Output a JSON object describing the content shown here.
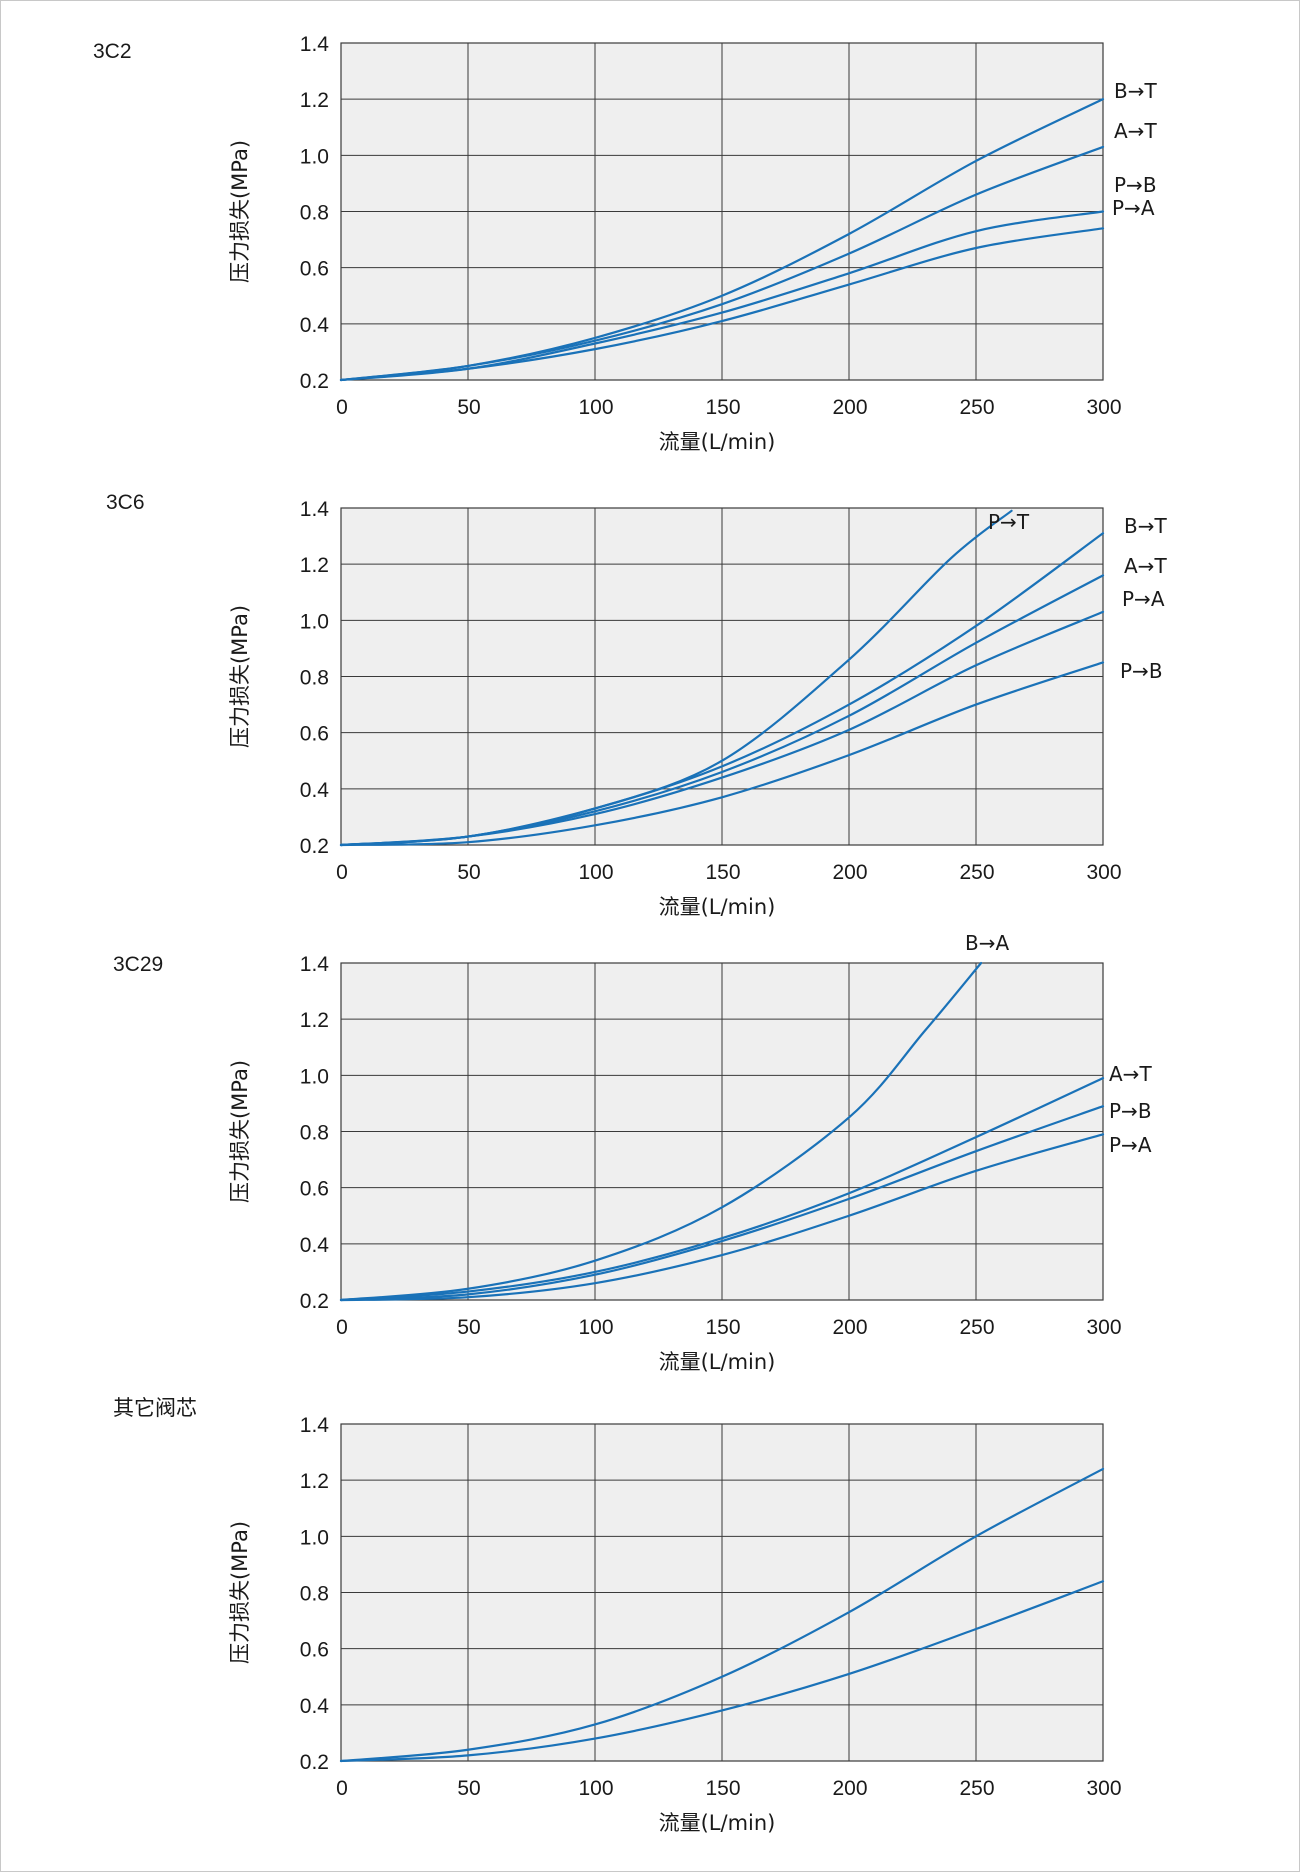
{
  "colors": {
    "curve": "#1a72b8",
    "plot_bg": "#efefef",
    "grid": "#3a3a3a"
  },
  "chart_data": [
    {
      "type": "line",
      "title": "3C2",
      "xlabel": "流量(L/min)",
      "ylabel": "压力损失(MPa)",
      "xlim": [
        0,
        300
      ],
      "ylim": [
        0.2,
        1.4
      ],
      "x_ticks": [
        "0",
        "50",
        "100",
        "150",
        "200",
        "250",
        "300"
      ],
      "y_ticks": [
        "1.4",
        "1.2",
        "1.0",
        "0.8",
        "0.6",
        "0.4",
        "0.2"
      ],
      "grid": true,
      "series": [
        {
          "name": "B→T",
          "x": [
            0,
            50,
            100,
            150,
            200,
            250,
            300
          ],
          "y": [
            0.2,
            0.25,
            0.35,
            0.5,
            0.72,
            0.98,
            1.2
          ]
        },
        {
          "name": "A→T",
          "x": [
            0,
            50,
            100,
            150,
            200,
            250,
            300
          ],
          "y": [
            0.2,
            0.25,
            0.34,
            0.47,
            0.65,
            0.86,
            1.03
          ]
        },
        {
          "name": "P→B",
          "x": [
            0,
            50,
            100,
            150,
            200,
            250,
            300
          ],
          "y": [
            0.2,
            0.24,
            0.33,
            0.44,
            0.58,
            0.73,
            0.8
          ]
        },
        {
          "name": "P→A",
          "x": [
            0,
            50,
            100,
            150,
            200,
            250,
            300
          ],
          "y": [
            0.2,
            0.24,
            0.31,
            0.41,
            0.54,
            0.67,
            0.74
          ]
        }
      ]
    },
    {
      "type": "line",
      "title": "3C6",
      "xlabel": "流量(L/min)",
      "ylabel": "压力损失(MPa)",
      "xlim": [
        0,
        300
      ],
      "ylim": [
        0.2,
        1.4
      ],
      "x_ticks": [
        "0",
        "50",
        "100",
        "150",
        "200",
        "250",
        "300"
      ],
      "y_ticks": [
        "1.4",
        "1.2",
        "1.0",
        "0.8",
        "0.6",
        "0.4",
        "0.2"
      ],
      "grid": true,
      "series": [
        {
          "name": "P→T",
          "x": [
            0,
            50,
            100,
            150,
            200,
            240,
            264
          ],
          "y": [
            0.2,
            0.23,
            0.33,
            0.5,
            0.86,
            1.22,
            1.39
          ]
        },
        {
          "name": "B→T",
          "x": [
            0,
            50,
            100,
            150,
            200,
            250,
            300
          ],
          "y": [
            0.2,
            0.23,
            0.33,
            0.48,
            0.7,
            0.98,
            1.31
          ]
        },
        {
          "name": "A→T",
          "x": [
            0,
            50,
            100,
            150,
            200,
            250,
            300
          ],
          "y": [
            0.2,
            0.23,
            0.32,
            0.46,
            0.66,
            0.92,
            1.16
          ]
        },
        {
          "name": "P→A",
          "x": [
            0,
            50,
            100,
            150,
            200,
            250,
            300
          ],
          "y": [
            0.2,
            0.23,
            0.31,
            0.44,
            0.61,
            0.84,
            1.03
          ]
        },
        {
          "name": "P→B",
          "x": [
            0,
            50,
            100,
            150,
            200,
            250,
            300
          ],
          "y": [
            0.2,
            0.21,
            0.27,
            0.37,
            0.52,
            0.7,
            0.85
          ]
        }
      ]
    },
    {
      "type": "line",
      "title": "3C29",
      "xlabel": "流量(L/min)",
      "ylabel": "压力损失(MPa)",
      "xlim": [
        0,
        300
      ],
      "ylim": [
        0.2,
        1.4
      ],
      "x_ticks": [
        "0",
        "50",
        "100",
        "150",
        "200",
        "250",
        "300"
      ],
      "y_ticks": [
        "1.4",
        "1.2",
        "1.0",
        "0.8",
        "0.6",
        "0.4",
        "0.2"
      ],
      "grid": true,
      "series": [
        {
          "name": "B→A",
          "x": [
            0,
            50,
            100,
            150,
            200,
            230,
            252
          ],
          "y": [
            0.2,
            0.24,
            0.34,
            0.53,
            0.85,
            1.16,
            1.4
          ]
        },
        {
          "name": "A→T",
          "x": [
            0,
            50,
            100,
            150,
            200,
            250,
            300
          ],
          "y": [
            0.2,
            0.23,
            0.3,
            0.42,
            0.58,
            0.78,
            0.99
          ]
        },
        {
          "name": "P→B",
          "x": [
            0,
            50,
            100,
            150,
            200,
            250,
            300
          ],
          "y": [
            0.2,
            0.22,
            0.29,
            0.41,
            0.56,
            0.73,
            0.89
          ]
        },
        {
          "name": "P→A",
          "x": [
            0,
            50,
            100,
            150,
            200,
            250,
            300
          ],
          "y": [
            0.2,
            0.21,
            0.26,
            0.36,
            0.5,
            0.66,
            0.79
          ]
        }
      ]
    },
    {
      "type": "line",
      "title": "其它阀芯",
      "xlabel": "流量(L/min)",
      "ylabel": "压力损失(MPa)",
      "xlim": [
        0,
        300
      ],
      "ylim": [
        0.2,
        1.4
      ],
      "x_ticks": [
        "0",
        "50",
        "100",
        "150",
        "200",
        "250",
        "300"
      ],
      "y_ticks": [
        "1.4",
        "1.2",
        "1.0",
        "0.8",
        "0.6",
        "0.4",
        "0.2"
      ],
      "grid": true,
      "series": [
        {
          "name": "",
          "x": [
            0,
            50,
            100,
            150,
            200,
            250,
            300
          ],
          "y": [
            0.2,
            0.24,
            0.33,
            0.5,
            0.73,
            1.0,
            1.24
          ]
        },
        {
          "name": "",
          "x": [
            0,
            50,
            100,
            150,
            200,
            250,
            300
          ],
          "y": [
            0.2,
            0.22,
            0.28,
            0.38,
            0.51,
            0.67,
            0.84
          ]
        }
      ]
    }
  ]
}
